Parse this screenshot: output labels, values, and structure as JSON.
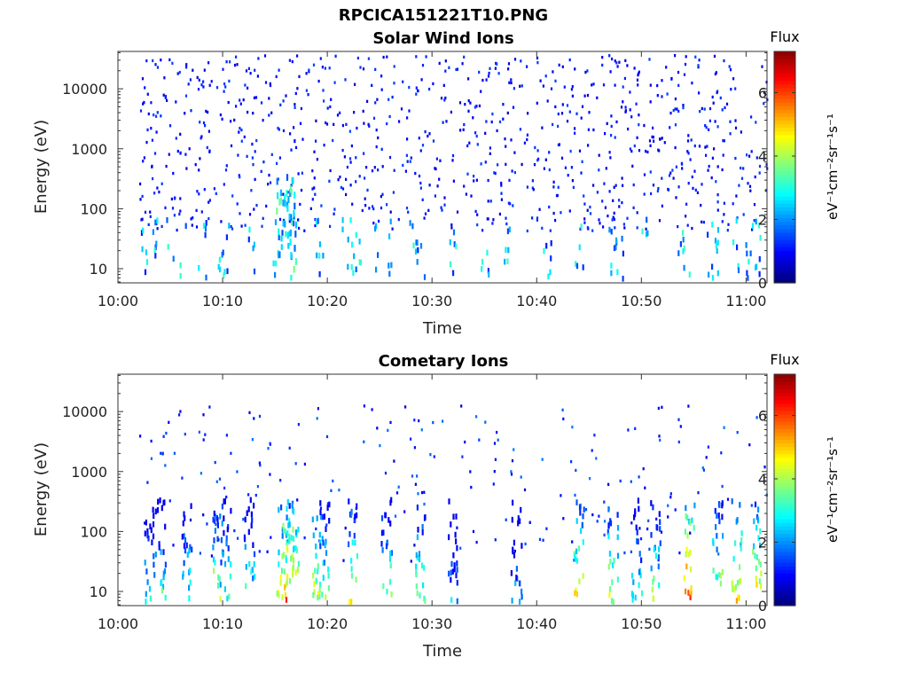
{
  "figure_title": "RPCICA151221T10.PNG",
  "colormap": [
    "#00007f",
    "#0000ff",
    "#007fff",
    "#00ffff",
    "#7fff7f",
    "#ffff00",
    "#ff7f00",
    "#ff0000",
    "#7f0000"
  ],
  "chart_data": [
    {
      "type": "heatmap",
      "title": "Solar Wind Ions",
      "xlabel": "Time",
      "ylabel": "Energy (eV)",
      "x_range": [
        "10:00",
        "11:02"
      ],
      "x_ticks": [
        "10:00",
        "10:10",
        "10:20",
        "10:30",
        "10:40",
        "10:50",
        "11:00"
      ],
      "y_scale": "log",
      "y_range": [
        5.8,
        42000
      ],
      "y_ticks": [
        "10",
        "100",
        "1000",
        "10000"
      ],
      "colorbar": {
        "label": "Flux",
        "units": "eV⁻¹cm⁻²sr⁻¹s⁻¹",
        "range": [
          0,
          7.3
        ],
        "ticks": [
          "0",
          "2",
          "4",
          "6"
        ]
      },
      "grid": false,
      "data_summary": "sparse low-flux (~1) counts spread over 100 eV–30 keV; flux 2–3 columns below 100 eV near 10:15–10:17, 10:22–10:23, 10:29, 10:48, 10:54"
    },
    {
      "type": "heatmap",
      "title": "Cometary Ions",
      "xlabel": "Time",
      "ylabel": "Energy (eV)",
      "x_range": [
        "10:00",
        "11:02"
      ],
      "x_ticks": [
        "10:00",
        "10:10",
        "10:20",
        "10:30",
        "10:40",
        "10:50",
        "11:00"
      ],
      "y_scale": "log",
      "y_range": [
        5.8,
        42000
      ],
      "y_ticks": [
        "10",
        "100",
        "1000",
        "10000"
      ],
      "colorbar": {
        "label": "Flux",
        "units": "eV⁻¹cm⁻²sr⁻¹s⁻¹",
        "range": [
          0,
          7.3
        ],
        "ticks": [
          "0",
          "2",
          "4",
          "6"
        ]
      },
      "grid": false,
      "data_summary": "bursts of flux 3–7 below 300 eV; peaks near 10:16 (~6), 10:44 (~5), 10:54 (~6), 11:01 (~5); sparse low-flux counts up to 10 keV"
    }
  ]
}
